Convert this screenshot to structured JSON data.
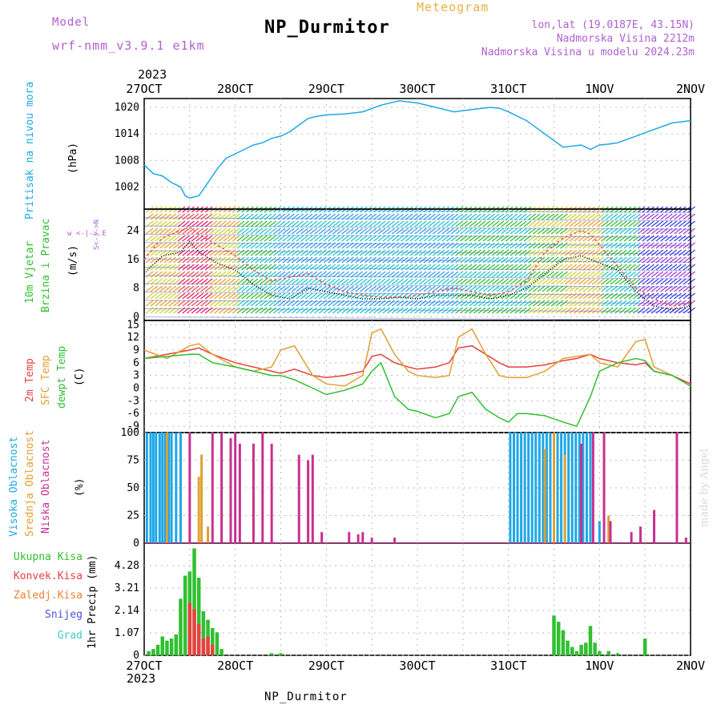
{
  "header": {
    "model_label": "Model",
    "model_name": "wrf-nmm_v3.9.1 e1km",
    "title": "NP_Durmitor",
    "subtitle": "Meteogram",
    "coords": "lon,lat (19.0187E, 43.15N)",
    "elevation": "Nadmorska Visina 2212m",
    "model_elevation": "Nadmorska Visina u modelu 2024.23m"
  },
  "footer": {
    "station": "NP_Durmitor",
    "credit": "made by Angel"
  },
  "time_axis": {
    "year": "2023",
    "labels": [
      "27OCT",
      "28OCT",
      "29OCT",
      "30OCT",
      "31OCT",
      "1NOV",
      "2NOV"
    ]
  },
  "colors": {
    "pressure": "#1ea8e8",
    "wind_speed": "#000000",
    "gust": "#e85050",
    "t2m": "#e84040",
    "sfc": "#e0a030",
    "dew": "#30c030",
    "cloud_high": "#1ea8e8",
    "cloud_mid": "#e0a030",
    "cloud_low": "#c83090",
    "precip_total": "#30c030",
    "precip_conv": "#e84040",
    "precip_strat": "#f08030",
    "snow": "#5050e0",
    "graupel": "#40c8c8",
    "grid": "#bbbbbb"
  },
  "panel_labels": {
    "pressure": {
      "name": "Pritisak na nivou mora",
      "unit": "(hPa)"
    },
    "wind": {
      "name1": "10m Vjetar",
      "name2": "Brzina i Pravac",
      "unit": "(m/s)",
      "compass": "w <-|-> E",
      "compass_v": "S<-|->N"
    },
    "temp": {
      "t2m": "2m Temp",
      "sfc": "SFC Temp",
      "dew": "dewpt Temp",
      "unit": "(C)"
    },
    "cloud": {
      "high": "Visoka Oblacnost",
      "mid": "Srednja Oblacnost",
      "low": "Niska Oblacnost",
      "unit": "(%)"
    },
    "precip": {
      "unit": "1hr Precip (mm)",
      "legend": [
        "Ukupna Kisa",
        "Konvek.Kisa",
        "Zaledj.Kisa",
        "Snijeg",
        "Grad"
      ]
    }
  },
  "chart_data": [
    {
      "type": "line",
      "panel": "pressure",
      "ylabel": "(hPa)",
      "ylim": [
        997,
        1022
      ],
      "yticks": [
        "1002",
        "1008",
        "1014",
        "1020"
      ],
      "x_days": [
        0,
        0.1,
        0.2,
        0.3,
        0.4,
        0.45,
        0.5,
        0.6,
        0.7,
        0.8,
        0.9,
        1.0,
        1.1,
        1.2,
        1.3,
        1.4,
        1.5,
        1.6,
        1.7,
        1.8,
        1.9,
        2.0,
        2.2,
        2.4,
        2.6,
        2.8,
        3.0,
        3.2,
        3.4,
        3.6,
        3.8,
        3.9,
        4.0,
        4.2,
        4.4,
        4.6,
        4.8,
        4.9,
        5.0,
        5.1,
        5.2,
        5.4,
        5.6,
        5.8,
        6.0
      ],
      "series": [
        {
          "values": [
            1007,
            1005,
            1004.5,
            1003,
            1002,
            1000,
            999.5,
            1000,
            1003,
            1006,
            1008.5,
            1009.5,
            1010.5,
            1011.5,
            1012,
            1013,
            1013.5,
            1014.5,
            1016,
            1017.5,
            1018,
            1018.3,
            1018.5,
            1019,
            1020.5,
            1021.5,
            1021,
            1020,
            1019,
            1019.5,
            1020,
            1019.8,
            1019,
            1017,
            1014,
            1011,
            1011.5,
            1010.5,
            1011.5,
            1011.7,
            1012,
            1013.5,
            1015,
            1016.5,
            1017
          ]
        }
      ]
    },
    {
      "type": "line",
      "panel": "wind",
      "ylabel": "(m/s)",
      "ylim": [
        -1,
        30
      ],
      "yticks": [
        "0",
        "8",
        "16",
        "24"
      ],
      "x_days": [
        0,
        0.2,
        0.4,
        0.5,
        0.6,
        0.8,
        1.0,
        1.2,
        1.4,
        1.6,
        1.8,
        2.0,
        2.2,
        2.4,
        2.6,
        2.8,
        3.0,
        3.2,
        3.4,
        3.6,
        3.8,
        4.0,
        4.2,
        4.4,
        4.6,
        4.8,
        4.9,
        5.0,
        5.2,
        5.4,
        5.6,
        5.8,
        6.0
      ],
      "series": [
        {
          "name": "wind_speed",
          "values": [
            12,
            17,
            18,
            21,
            18,
            15,
            13,
            9,
            6,
            5,
            8,
            7,
            6,
            5,
            5,
            5.5,
            5,
            6,
            6,
            6,
            5,
            6,
            8,
            12,
            16,
            17,
            16,
            15,
            13,
            7,
            3,
            2,
            3
          ]
        },
        {
          "name": "gust",
          "values": [
            16,
            22,
            24,
            25,
            23,
            20,
            17,
            13,
            10,
            11,
            12,
            9,
            7,
            6,
            5.5,
            5.5,
            6,
            7,
            8,
            7,
            6,
            7,
            10,
            18,
            22,
            24,
            23,
            20,
            14,
            8,
            5,
            3,
            4
          ]
        }
      ]
    },
    {
      "type": "line",
      "panel": "temp",
      "ylabel": "(C)",
      "ylim": [
        -10.5,
        16
      ],
      "yticks": [
        "-9",
        "-6",
        "-3",
        "0",
        "3",
        "6",
        "9",
        "12",
        "15"
      ],
      "x_days": [
        0,
        0.25,
        0.5,
        0.6,
        0.75,
        1.0,
        1.2,
        1.4,
        1.5,
        1.65,
        1.85,
        2.0,
        2.2,
        2.4,
        2.5,
        2.6,
        2.75,
        2.9,
        3.0,
        3.2,
        3.35,
        3.45,
        3.6,
        3.75,
        3.9,
        4.0,
        4.1,
        4.2,
        4.4,
        4.6,
        4.75,
        4.9,
        5.0,
        5.2,
        5.4,
        5.5,
        5.6,
        5.8,
        6.0
      ],
      "series": [
        {
          "name": "t2m",
          "values": [
            7,
            8,
            9,
            9.5,
            8,
            6,
            5,
            4,
            3.5,
            4.5,
            3,
            2.5,
            3,
            4,
            7.5,
            8,
            6,
            5,
            4.5,
            5,
            6,
            9.5,
            10,
            8,
            6,
            5,
            5,
            5,
            5.5,
            6.5,
            7,
            8,
            7,
            6,
            5.5,
            6,
            4,
            3,
            1
          ]
        },
        {
          "name": "sfc",
          "values": [
            9,
            7,
            10,
            10.5,
            8,
            5,
            4,
            5,
            9,
            10,
            3,
            1,
            0.5,
            3,
            13,
            14,
            8,
            4,
            3,
            2.5,
            3,
            12,
            14,
            8,
            3,
            2.5,
            2.5,
            2.5,
            4,
            7,
            7.5,
            8,
            6,
            5,
            11,
            11.5,
            5,
            3,
            0.5
          ]
        },
        {
          "name": "dew",
          "values": [
            7,
            7.5,
            8,
            8,
            6,
            5,
            4,
            3,
            3,
            2,
            0,
            -1.5,
            -0.5,
            1,
            4,
            6,
            -2,
            -5,
            -5.5,
            -7,
            -6,
            -2,
            -1,
            -5,
            -7,
            -8,
            -6,
            -6,
            -6.5,
            -8,
            -9,
            -2,
            4,
            6,
            7,
            6.5,
            4,
            3,
            0.5
          ]
        }
      ]
    },
    {
      "type": "bar",
      "panel": "cloud",
      "ylabel": "(%)",
      "ylim": [
        0,
        100
      ],
      "yticks": [
        "0",
        "25",
        "50",
        "75",
        "100"
      ],
      "series": [
        {
          "name": "high",
          "x_days": [
            0.03,
            0.07,
            0.1,
            0.13,
            0.17,
            0.2,
            0.23,
            0.27,
            0.3,
            0.35,
            0.4,
            4.02,
            4.06,
            4.1,
            4.14,
            4.18,
            4.22,
            4.26,
            4.3,
            4.34,
            4.38,
            4.42,
            4.46,
            4.5,
            4.54,
            4.58,
            4.62,
            4.66,
            4.7,
            4.74,
            4.78,
            4.82,
            4.86,
            4.9,
            5.0
          ],
          "values": [
            100,
            100,
            100,
            100,
            100,
            100,
            100,
            100,
            100,
            100,
            100,
            100,
            100,
            100,
            100,
            100,
            100,
            100,
            100,
            100,
            100,
            100,
            100,
            100,
            100,
            100,
            100,
            100,
            100,
            100,
            100,
            100,
            100,
            100,
            20
          ]
        },
        {
          "name": "mid",
          "x_days": [
            0.25,
            0.6,
            0.63,
            0.7,
            4.4,
            4.5,
            4.62,
            5.1
          ],
          "values": [
            100,
            60,
            80,
            15,
            85,
            100,
            80,
            25
          ]
        },
        {
          "name": "low",
          "x_days": [
            0.5,
            0.75,
            0.85,
            0.95,
            1.0,
            1.05,
            1.2,
            1.3,
            1.4,
            1.7,
            1.8,
            1.85,
            1.95,
            2.25,
            2.35,
            2.4,
            2.5,
            2.75,
            4.8,
            4.93,
            5.05,
            5.12,
            5.35,
            5.45,
            5.6,
            5.85,
            5.95
          ],
          "values": [
            100,
            100,
            100,
            95,
            100,
            90,
            90,
            100,
            90,
            80,
            75,
            80,
            10,
            10,
            8,
            10,
            5,
            5,
            90,
            100,
            100,
            20,
            10,
            15,
            30,
            100,
            5
          ]
        }
      ]
    },
    {
      "type": "bar",
      "panel": "precip",
      "ylabel": "1hr Precip (mm)",
      "ylim": [
        0,
        5.35
      ],
      "yticks": [
        "0",
        "1.07",
        "2.14",
        "3.21",
        "4.28"
      ],
      "series": [
        {
          "name": "total",
          "x_days": [
            0.05,
            0.1,
            0.15,
            0.2,
            0.25,
            0.3,
            0.35,
            0.4,
            0.45,
            0.5,
            0.55,
            0.6,
            0.65,
            0.7,
            0.75,
            0.8,
            0.85,
            1.4,
            1.5,
            4.5,
            4.55,
            4.6,
            4.65,
            4.7,
            4.75,
            4.8,
            4.85,
            4.9,
            4.95,
            5.0,
            5.1,
            5.2,
            5.5
          ],
          "values": [
            0.2,
            0.3,
            0.5,
            0.9,
            0.7,
            0.8,
            1.0,
            2.7,
            3.8,
            4.0,
            5.1,
            3.7,
            2.1,
            1.7,
            1.3,
            1.1,
            0.3,
            0.1,
            0.1,
            1.9,
            1.6,
            1.2,
            0.7,
            0.4,
            0.2,
            0.5,
            0.6,
            1.4,
            0.6,
            0.2,
            0.2,
            0.1,
            0.8
          ]
        },
        {
          "name": "convective",
          "x_days": [
            0.5,
            0.55,
            0.6,
            0.65,
            0.7,
            0.75
          ],
          "values": [
            2.5,
            2.2,
            1.5,
            0.8,
            0.9,
            0.5
          ]
        }
      ]
    }
  ]
}
